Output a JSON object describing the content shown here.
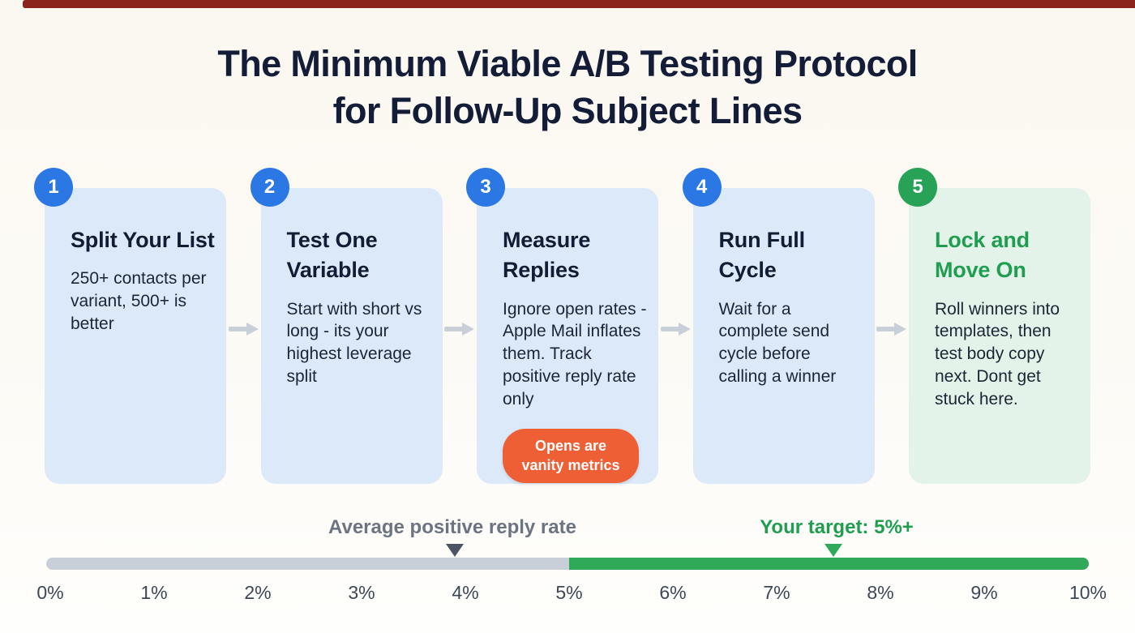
{
  "header": {
    "title_line1": "The Minimum Viable A/B Testing Protocol",
    "title_line2": "for Follow-Up Subject Lines"
  },
  "steps": [
    {
      "number": "1",
      "title": "Split Your List",
      "body": "250+ contacts per variant, 500+ is better"
    },
    {
      "number": "2",
      "title": "Test One Variable",
      "body": "Start with short vs long - its your highest leverage split"
    },
    {
      "number": "3",
      "title": "Measure Replies",
      "body": "Ignore open rates - Apple Mail inflates them. Track positive reply rate only",
      "badge": "Opens are vanity metrics"
    },
    {
      "number": "4",
      "title": "Run Full Cycle",
      "body": "Wait for a complete send cycle before calling a winner"
    },
    {
      "number": "5",
      "title": "Lock and Move On",
      "body": "Roll winners into templates, then test body copy next. Dont get stuck here."
    }
  ],
  "scale": {
    "average_label": "Average positive reply rate",
    "target_label": "Your target: 5%+",
    "ticks": [
      "0%",
      "1%",
      "2%",
      "3%",
      "4%",
      "5%",
      "6%",
      "7%",
      "8%",
      "9%",
      "10%"
    ],
    "average_marker_percent": 3.9,
    "target_marker_percent": 7.55,
    "green_start_percent": 5
  },
  "colors": {
    "accent_blue": "#2b78e4",
    "accent_green": "#27a257",
    "card_blue": "#dbe9f9",
    "card_green": "#e4f3ea",
    "badge_orange": "#ef5f35",
    "bar_gray": "#c9cfd8",
    "bar_green": "#2fa958",
    "title_navy": "#141d38",
    "top_strip_red": "#8a241c"
  }
}
